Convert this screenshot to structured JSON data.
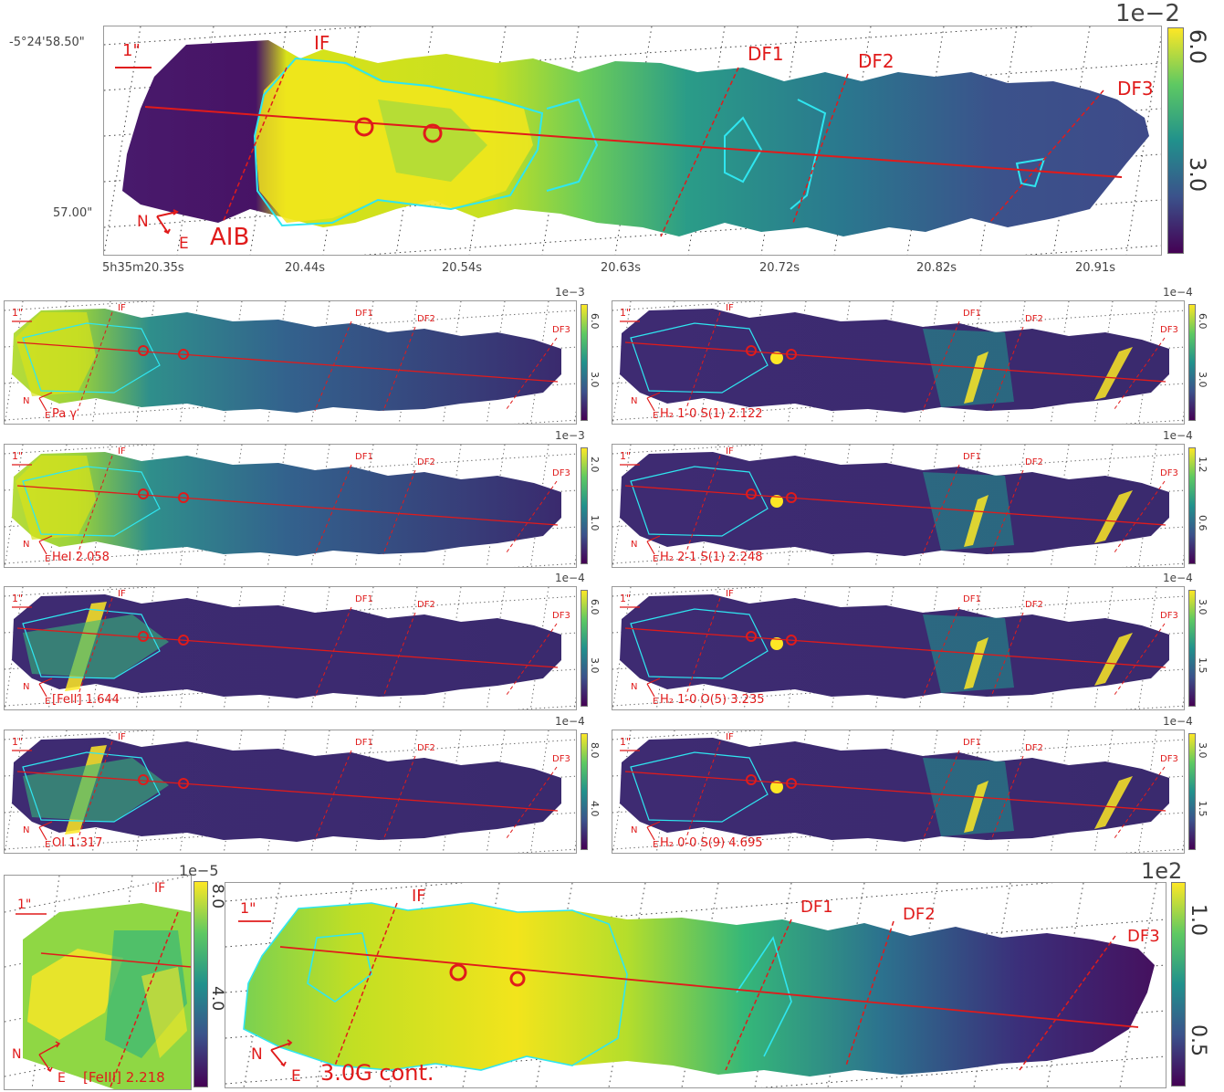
{
  "colors": {
    "low": "#440154",
    "mid": "#2a788e",
    "high": "#fde725",
    "contour": "#2fe6f0",
    "marker": "#e01b1b"
  },
  "main": {
    "colorbar_exponent": "1e−2",
    "colorbar_ticks": [
      "6.0",
      "3.0"
    ],
    "scale_bar": "1\"",
    "region_labels": {
      "if": "IF",
      "df1": "DF1",
      "df2": "DF2",
      "df3": "DF3",
      "aib": "AIB"
    },
    "dec_ticks": [
      "-5°24'58.50\"",
      "57.00\""
    ],
    "ra_ticks": [
      "5h35m20.35s",
      "20.44s",
      "20.54s",
      "20.63s",
      "20.72s",
      "20.82s",
      "20.91s"
    ],
    "compass": {
      "north": "N",
      "east": "E"
    }
  },
  "small_panels": [
    {
      "label": "Pa γ",
      "exp": "1e−3",
      "ticks": [
        "6.0",
        "3.0"
      ],
      "kind": "ionized"
    },
    {
      "label": "H₂ 1-0 S(1) 2.122",
      "exp": "1e−4",
      "ticks": [
        "6.0",
        "3.0"
      ],
      "kind": "h2"
    },
    {
      "label": "HeI 2.058",
      "exp": "1e−3",
      "ticks": [
        "2.0",
        "1.0"
      ],
      "kind": "ionized"
    },
    {
      "label": "H₂ 2-1 S(1) 2.248",
      "exp": "1e−4",
      "ticks": [
        "1.2",
        "0.6"
      ],
      "kind": "h2"
    },
    {
      "label": "[FeII] 1.644",
      "exp": "1e−4",
      "ticks": [
        "6.0",
        "3.0"
      ],
      "kind": "front"
    },
    {
      "label": "H₂ 1-0 O(5) 3.235",
      "exp": "1e−4",
      "ticks": [
        "3.0",
        "1.5"
      ],
      "kind": "h2"
    },
    {
      "label": "OI 1.317",
      "exp": "1e−4",
      "ticks": [
        "8.0",
        "4.0"
      ],
      "kind": "front"
    },
    {
      "label": "H₂ 0-0 S(9) 4.695",
      "exp": "1e−4",
      "ticks": [
        "3.0",
        "1.5"
      ],
      "kind": "h2"
    }
  ],
  "small_common": {
    "scale_bar": "1\"",
    "if": "IF",
    "df1": "DF1",
    "df2": "DF2",
    "df3": "DF3",
    "north": "N",
    "east": "E"
  },
  "feiii": {
    "label": "[FeIII] 2.218",
    "exp": "1e−5",
    "ticks": [
      "8.0",
      "4.0"
    ],
    "scale_bar": "1\"",
    "if": "IF",
    "north": "N",
    "east": "E"
  },
  "cont": {
    "label": "3.0G cont.",
    "exp": "1e2",
    "ticks": [
      "1.0",
      "0.5"
    ],
    "scale_bar": "1\"",
    "if": "IF",
    "df1": "DF1",
    "df2": "DF2",
    "df3": "DF3",
    "north": "N",
    "east": "E"
  }
}
